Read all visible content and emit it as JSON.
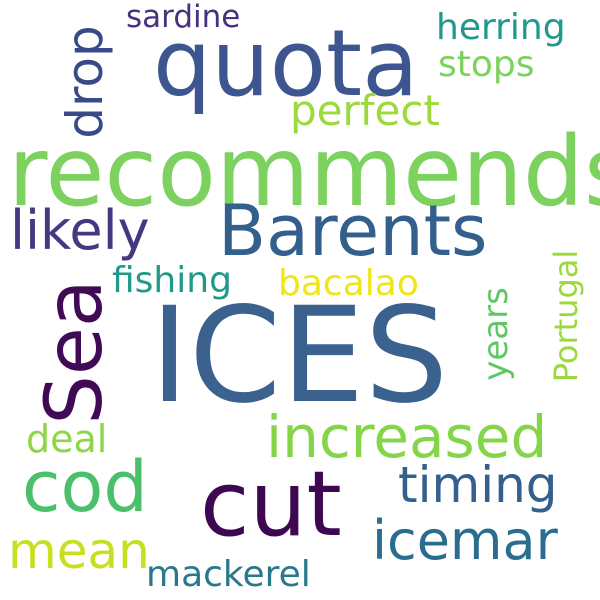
{
  "word_cloud": {
    "words": [
      {
        "id": "ices",
        "text": "ICES",
        "color": "#3b628e"
      },
      {
        "id": "recommends",
        "text": "recommends",
        "color": "#7dd15e"
      },
      {
        "id": "quota",
        "text": "quota",
        "color": "#3e5690"
      },
      {
        "id": "barents",
        "text": "Barents",
        "color": "#335f8c"
      },
      {
        "id": "cut",
        "text": "cut",
        "color": "#3e0751"
      },
      {
        "id": "sea",
        "text": "Sea",
        "color": "#410a55"
      },
      {
        "id": "cod",
        "text": "cod",
        "color": "#4bbf6a"
      },
      {
        "id": "increased",
        "text": "increased",
        "color": "#85d54a"
      },
      {
        "id": "likely",
        "text": "likely",
        "color": "#463880"
      },
      {
        "id": "icemar",
        "text": "icemar",
        "color": "#2b6d8e"
      },
      {
        "id": "timing",
        "text": "timing",
        "color": "#34608d"
      },
      {
        "id": "mean",
        "text": "mean",
        "color": "#c8df20"
      },
      {
        "id": "drop",
        "text": "drop",
        "color": "#3a4a89"
      },
      {
        "id": "perfect",
        "text": "perfect",
        "color": "#9bd93c"
      },
      {
        "id": "mackerel",
        "text": "mackerel",
        "color": "#2a788e"
      },
      {
        "id": "bacalao",
        "text": "bacalao",
        "color": "#efe517"
      },
      {
        "id": "herring",
        "text": "herring",
        "color": "#20988b"
      },
      {
        "id": "stops",
        "text": "stops",
        "color": "#7dd15e"
      },
      {
        "id": "fishing",
        "text": "fishing",
        "color": "#1f9a8a"
      },
      {
        "id": "deal",
        "text": "deal",
        "color": "#8ed645"
      },
      {
        "id": "sardine",
        "text": "sardine",
        "color": "#46327e"
      },
      {
        "id": "years",
        "text": "years",
        "color": "#5cc863"
      },
      {
        "id": "portugal",
        "text": "Portugal",
        "color": "#9bd93c"
      }
    ]
  }
}
